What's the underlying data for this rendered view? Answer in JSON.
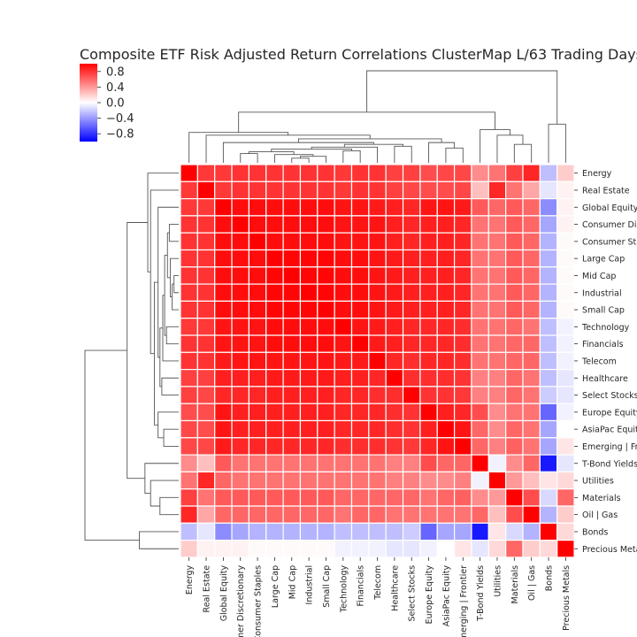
{
  "chart_data": {
    "type": "heatmap",
    "title": "Composite ETF Risk Adjusted Return Correlations ClusterMap L/63 Trading Days",
    "labels": [
      "Energy",
      "Real Estate",
      "Global Equity",
      "Consumer Discretionary",
      "Consumer Staples",
      "Large Cap",
      "Mid Cap",
      "Industrial",
      "Small Cap",
      "Technology",
      "Financials",
      "Telecom",
      "Healthcare",
      "Select Stocks",
      "Europe Equity",
      "AsiaPac Equity",
      "Emerging | Frontier",
      "T-Bond Yields",
      "Utilities",
      "Materials",
      "Oil | Gas",
      "Bonds",
      "Precious Metals"
    ],
    "row_labels_shown": [
      "Energy",
      "Real Estate",
      "Global Equity",
      "Consumer Dis",
      "Consumer Sta",
      "Large Cap",
      "Mid Cap",
      "Industrial",
      "Small Cap",
      "Technology",
      "Financials",
      "Telecom",
      "Healthcare",
      "Select Stocks",
      "Europe Equity",
      "AsiaPac Equit",
      "Emerging | Fro",
      "T-Bond Yields",
      "Utilities",
      "Materials",
      "Oil | Gas",
      "Bonds",
      "Precious Meta"
    ],
    "col_labels_shown": [
      "Energy",
      "Real Estate",
      "Global Equity",
      "mer Discretionary",
      "Consumer Staples",
      "Large Cap",
      "Mid Cap",
      "Industrial",
      "Small Cap",
      "Technology",
      "Financials",
      "Telecom",
      "Healthcare",
      "Select Stocks",
      "Europe Equity",
      "AsiaPac Equity",
      "merging | Frontier",
      "T-Bond Yields",
      "Utilities",
      "Materials",
      "Oil | Gas",
      "Bonds",
      "Precious Metals"
    ],
    "values": [
      [
        1.0,
        0.78,
        0.78,
        0.8,
        0.8,
        0.8,
        0.8,
        0.8,
        0.8,
        0.78,
        0.8,
        0.8,
        0.75,
        0.75,
        0.7,
        0.72,
        0.72,
        0.45,
        0.55,
        0.75,
        0.85,
        -0.25,
        0.2
      ],
      [
        0.78,
        1.0,
        0.78,
        0.8,
        0.8,
        0.8,
        0.8,
        0.8,
        0.8,
        0.78,
        0.8,
        0.8,
        0.75,
        0.72,
        0.7,
        0.7,
        0.72,
        0.25,
        0.85,
        0.55,
        0.35,
        -0.1,
        0.05
      ],
      [
        0.78,
        0.78,
        1.0,
        0.95,
        0.95,
        0.95,
        0.95,
        0.95,
        0.95,
        0.92,
        0.92,
        0.9,
        0.88,
        0.85,
        0.92,
        0.92,
        0.9,
        0.65,
        0.6,
        0.65,
        0.6,
        -0.45,
        0.05
      ],
      [
        0.8,
        0.8,
        0.95,
        1.0,
        0.95,
        0.95,
        0.95,
        0.95,
        0.95,
        0.92,
        0.92,
        0.92,
        0.88,
        0.85,
        0.88,
        0.88,
        0.85,
        0.55,
        0.55,
        0.65,
        0.6,
        -0.35,
        0.05
      ],
      [
        0.8,
        0.8,
        0.95,
        0.95,
        1.0,
        0.95,
        0.95,
        0.95,
        0.95,
        0.92,
        0.92,
        0.92,
        0.88,
        0.85,
        0.88,
        0.88,
        0.85,
        0.55,
        0.55,
        0.65,
        0.6,
        -0.3,
        0.02
      ],
      [
        0.8,
        0.8,
        0.95,
        0.95,
        0.95,
        1.0,
        0.98,
        0.98,
        0.98,
        0.95,
        0.95,
        0.92,
        0.9,
        0.88,
        0.88,
        0.88,
        0.85,
        0.55,
        0.55,
        0.65,
        0.6,
        -0.3,
        0.02
      ],
      [
        0.8,
        0.8,
        0.95,
        0.95,
        0.95,
        0.98,
        1.0,
        0.98,
        0.98,
        0.95,
        0.95,
        0.92,
        0.9,
        0.88,
        0.88,
        0.88,
        0.85,
        0.55,
        0.55,
        0.65,
        0.6,
        -0.3,
        0.02
      ],
      [
        0.8,
        0.8,
        0.95,
        0.95,
        0.95,
        0.98,
        0.98,
        1.0,
        0.98,
        0.95,
        0.95,
        0.92,
        0.9,
        0.88,
        0.88,
        0.88,
        0.85,
        0.55,
        0.55,
        0.65,
        0.6,
        -0.3,
        0.02
      ],
      [
        0.8,
        0.8,
        0.95,
        0.95,
        0.95,
        0.98,
        0.98,
        0.98,
        1.0,
        0.95,
        0.95,
        0.92,
        0.9,
        0.88,
        0.88,
        0.88,
        0.85,
        0.55,
        0.55,
        0.65,
        0.6,
        -0.3,
        0.02
      ],
      [
        0.78,
        0.78,
        0.92,
        0.92,
        0.92,
        0.95,
        0.95,
        0.95,
        0.95,
        1.0,
        0.92,
        0.9,
        0.88,
        0.85,
        0.85,
        0.85,
        0.82,
        0.55,
        0.55,
        0.6,
        0.55,
        -0.25,
        -0.05
      ],
      [
        0.8,
        0.8,
        0.92,
        0.92,
        0.92,
        0.95,
        0.95,
        0.95,
        0.95,
        0.92,
        1.0,
        0.9,
        0.88,
        0.85,
        0.85,
        0.85,
        0.82,
        0.55,
        0.55,
        0.6,
        0.6,
        -0.25,
        -0.05
      ],
      [
        0.8,
        0.8,
        0.9,
        0.92,
        0.92,
        0.92,
        0.92,
        0.92,
        0.92,
        0.9,
        0.9,
        1.0,
        0.85,
        0.82,
        0.85,
        0.85,
        0.82,
        0.55,
        0.55,
        0.6,
        0.6,
        -0.25,
        -0.05
      ],
      [
        0.75,
        0.75,
        0.88,
        0.88,
        0.88,
        0.9,
        0.9,
        0.9,
        0.9,
        0.88,
        0.88,
        0.85,
        1.0,
        0.82,
        0.82,
        0.82,
        0.8,
        0.5,
        0.5,
        0.6,
        0.55,
        -0.25,
        -0.1
      ],
      [
        0.75,
        0.72,
        0.85,
        0.85,
        0.85,
        0.88,
        0.88,
        0.88,
        0.88,
        0.85,
        0.85,
        0.82,
        0.82,
        1.0,
        0.8,
        0.8,
        0.78,
        0.5,
        0.5,
        0.6,
        0.55,
        -0.2,
        -0.1
      ],
      [
        0.7,
        0.7,
        0.92,
        0.88,
        0.88,
        0.88,
        0.88,
        0.88,
        0.88,
        0.85,
        0.85,
        0.85,
        0.82,
        0.8,
        1.0,
        0.88,
        0.85,
        0.7,
        0.45,
        0.55,
        0.55,
        -0.6,
        -0.05
      ],
      [
        0.72,
        0.7,
        0.92,
        0.88,
        0.88,
        0.88,
        0.88,
        0.88,
        0.88,
        0.85,
        0.85,
        0.85,
        0.82,
        0.8,
        0.88,
        1.0,
        0.92,
        0.6,
        0.45,
        0.6,
        0.55,
        -0.35,
        0.0
      ],
      [
        0.72,
        0.72,
        0.9,
        0.85,
        0.85,
        0.85,
        0.85,
        0.85,
        0.85,
        0.82,
        0.82,
        0.82,
        0.8,
        0.78,
        0.85,
        0.92,
        1.0,
        0.6,
        0.5,
        0.62,
        0.55,
        -0.35,
        0.1
      ],
      [
        0.45,
        0.25,
        0.65,
        0.55,
        0.55,
        0.55,
        0.55,
        0.55,
        0.55,
        0.55,
        0.55,
        0.55,
        0.5,
        0.5,
        0.7,
        0.6,
        0.6,
        1.0,
        -0.05,
        0.45,
        0.6,
        -0.9,
        -0.1
      ],
      [
        0.55,
        0.85,
        0.6,
        0.55,
        0.55,
        0.55,
        0.55,
        0.55,
        0.55,
        0.55,
        0.55,
        0.55,
        0.5,
        0.5,
        0.45,
        0.45,
        0.5,
        -0.05,
        1.0,
        0.4,
        0.25,
        0.1,
        0.15
      ],
      [
        0.75,
        0.55,
        0.65,
        0.65,
        0.65,
        0.65,
        0.65,
        0.65,
        0.65,
        0.6,
        0.6,
        0.6,
        0.6,
        0.6,
        0.55,
        0.6,
        0.62,
        0.45,
        0.4,
        1.0,
        0.7,
        -0.15,
        0.6
      ],
      [
        0.85,
        0.35,
        0.6,
        0.6,
        0.6,
        0.6,
        0.6,
        0.6,
        0.6,
        0.55,
        0.6,
        0.6,
        0.55,
        0.55,
        0.55,
        0.55,
        0.55,
        0.6,
        0.25,
        0.7,
        1.0,
        -0.3,
        0.2
      ],
      [
        -0.25,
        -0.1,
        -0.45,
        -0.35,
        -0.3,
        -0.3,
        -0.3,
        -0.3,
        -0.3,
        -0.25,
        -0.25,
        -0.25,
        -0.25,
        -0.2,
        -0.6,
        -0.35,
        -0.35,
        -0.9,
        0.1,
        -0.15,
        -0.3,
        1.0,
        0.15
      ],
      [
        0.2,
        0.05,
        0.05,
        0.05,
        0.02,
        0.02,
        0.02,
        0.02,
        0.02,
        -0.05,
        -0.05,
        -0.05,
        -0.1,
        -0.1,
        -0.05,
        0.0,
        0.1,
        -0.1,
        0.15,
        0.6,
        0.2,
        0.15,
        1.0
      ]
    ],
    "vmin": -1,
    "vmax": 1,
    "colormap": "bwr",
    "colorbar_ticks": [
      "0.8",
      "0.4",
      "0.0",
      "−0.4",
      "−0.8"
    ],
    "colorbar_tick_values": [
      0.8,
      0.4,
      0.0,
      -0.4,
      -0.8
    ],
    "dendrograms": [
      "top",
      "left"
    ],
    "cell_border_color": "#ffffff",
    "label_color": "#262626",
    "dendrogram_color": "#555555"
  }
}
